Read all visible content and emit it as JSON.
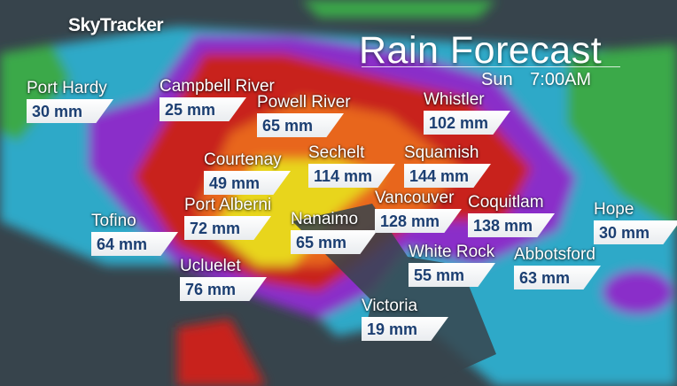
{
  "brand": "SkyTracker",
  "title": "Rain Forecast",
  "day": "Sun",
  "time": "7:00AM",
  "unit": "mm",
  "legend_colors": {
    "water": "#37444c",
    "light": "#2fb6d6",
    "low": "#3aa94a",
    "medium": "#8a2fc9",
    "high": "#c8231e",
    "higher": "#e8661c",
    "highest": "#e8d51c"
  },
  "locations": [
    {
      "name": "Port Hardy",
      "value": "30 mm"
    },
    {
      "name": "Campbell River",
      "value": "25 mm"
    },
    {
      "name": "Powell River",
      "value": "65 mm"
    },
    {
      "name": "Whistler",
      "value": "102 mm"
    },
    {
      "name": "Courtenay",
      "value": "49 mm"
    },
    {
      "name": "Sechelt",
      "value": "114 mm"
    },
    {
      "name": "Squamish",
      "value": "144 mm"
    },
    {
      "name": "Tofino",
      "value": "64 mm"
    },
    {
      "name": "Port Alberni",
      "value": "72 mm"
    },
    {
      "name": "Nanaimo",
      "value": "65 mm"
    },
    {
      "name": "Vancouver",
      "value": "128 mm"
    },
    {
      "name": "Coquitlam",
      "value": "138 mm"
    },
    {
      "name": "Hope",
      "value": "30 mm"
    },
    {
      "name": "White Rock",
      "value": "55 mm"
    },
    {
      "name": "Abbotsford",
      "value": "63 mm"
    },
    {
      "name": "Ucluelet",
      "value": "76 mm"
    },
    {
      "name": "Victoria",
      "value": "19 mm"
    }
  ]
}
